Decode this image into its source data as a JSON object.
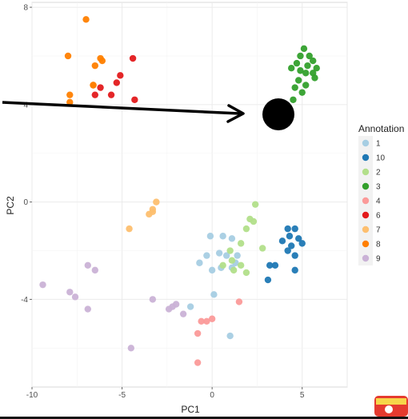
{
  "chart_data": {
    "type": "scatter",
    "title": "",
    "xlabel": "PC1",
    "ylabel": "PC2",
    "xlim": [
      -10,
      7.5
    ],
    "ylim": [
      -7.6,
      8.2
    ],
    "xticks": [
      -10,
      -5,
      0,
      5
    ],
    "yticks": [
      -4,
      0,
      4,
      8
    ],
    "grid": true,
    "legend": {
      "title": "Annotation",
      "position": "right"
    },
    "series": [
      {
        "name": "1",
        "color": "#A6CEE3",
        "points": [
          [
            -0.1,
            -1.4
          ],
          [
            0.6,
            -1.4
          ],
          [
            1.1,
            -1.5
          ],
          [
            -0.3,
            -2.2
          ],
          [
            0.4,
            -2.1
          ],
          [
            0.8,
            -2.2
          ],
          [
            1.4,
            -2.2
          ],
          [
            1.3,
            -2.5
          ],
          [
            -0.7,
            -2.5
          ],
          [
            0,
            -2.8
          ],
          [
            0.5,
            -2.7
          ],
          [
            1.1,
            -2.7
          ],
          [
            0.1,
            -3.8
          ],
          [
            -1.2,
            -4.3
          ],
          [
            1,
            -5.5
          ]
        ]
      },
      {
        "name": "10",
        "color": "#1F78B4",
        "points": [
          [
            4.2,
            -1.1
          ],
          [
            4.6,
            -1.1
          ],
          [
            4.3,
            -1.4
          ],
          [
            4.8,
            -1.5
          ],
          [
            3.9,
            -1.6
          ],
          [
            4.4,
            -1.8
          ],
          [
            5,
            -1.7
          ],
          [
            4.2,
            -2
          ],
          [
            4.6,
            -2.2
          ],
          [
            3.5,
            -2.6
          ],
          [
            3.2,
            -2.6
          ],
          [
            4.6,
            -2.8
          ],
          [
            3.1,
            -3.2
          ]
        ]
      },
      {
        "name": "2",
        "color": "#B2DF8A",
        "points": [
          [
            2.4,
            -0.1
          ],
          [
            2.1,
            -0.7
          ],
          [
            2.3,
            -0.8
          ],
          [
            1.9,
            -1.1
          ],
          [
            1.6,
            -1.7
          ],
          [
            1,
            -2
          ],
          [
            2.8,
            -1.9
          ],
          [
            1.1,
            -2.4
          ],
          [
            1.6,
            -2.6
          ],
          [
            1.2,
            -2.8
          ],
          [
            0.6,
            -2.6
          ],
          [
            1.9,
            -2.9
          ]
        ]
      },
      {
        "name": "3",
        "color": "#33A02C",
        "points": [
          [
            5.1,
            6.3
          ],
          [
            4.9,
            6
          ],
          [
            5.4,
            6
          ],
          [
            5.6,
            5.8
          ],
          [
            4.7,
            5.7
          ],
          [
            5.3,
            5.6
          ],
          [
            5.8,
            5.5
          ],
          [
            4.9,
            5.4
          ],
          [
            4.4,
            5.5
          ],
          [
            5.2,
            5.3
          ],
          [
            5.6,
            5.3
          ],
          [
            4.8,
            5
          ],
          [
            5.7,
            5.1
          ],
          [
            5.2,
            4.8
          ],
          [
            4.6,
            4.7
          ],
          [
            5,
            4.5
          ],
          [
            4.5,
            4.2
          ]
        ]
      },
      {
        "name": "4",
        "color": "#FB9A99",
        "points": [
          [
            1.5,
            -4.1
          ],
          [
            -0.6,
            -4.9
          ],
          [
            0,
            -4.8
          ],
          [
            -0.3,
            -4.9
          ],
          [
            -0.8,
            -5.4
          ],
          [
            -0.8,
            -6.6
          ]
        ]
      },
      {
        "name": "6",
        "color": "#E31A1C",
        "points": [
          [
            -4.4,
            5.9
          ],
          [
            -5.1,
            5.2
          ],
          [
            -5.3,
            4.9
          ],
          [
            -6.2,
            4.7
          ],
          [
            -6.5,
            4.4
          ],
          [
            -5.6,
            4.4
          ],
          [
            -4.3,
            4.2
          ]
        ]
      },
      {
        "name": "7",
        "color": "#FDBF6F",
        "points": [
          [
            -3.1,
            0
          ],
          [
            -3.3,
            -0.3
          ],
          [
            -3.5,
            -0.5
          ],
          [
            -3.3,
            -0.4
          ],
          [
            -4.6,
            -1.1
          ]
        ]
      },
      {
        "name": "8",
        "color": "#FF7F00",
        "points": [
          [
            -7,
            7.5
          ],
          [
            -6.5,
            5.6
          ],
          [
            -8,
            6
          ],
          [
            -6.1,
            5.8
          ],
          [
            -6.2,
            5.9
          ],
          [
            -6.6,
            4.8
          ],
          [
            -6.6,
            4.8
          ],
          [
            -7.9,
            4.4
          ],
          [
            -7.9,
            4.1
          ]
        ]
      },
      {
        "name": "9",
        "color": "#CAB2D6",
        "points": [
          [
            -9.4,
            -3.4
          ],
          [
            -6.9,
            -2.6
          ],
          [
            -6.5,
            -2.8
          ],
          [
            -7.9,
            -3.7
          ],
          [
            -7.6,
            -3.9
          ],
          [
            -6.9,
            -4.4
          ],
          [
            -3.3,
            -4
          ],
          [
            -2,
            -4.2
          ],
          [
            -2.2,
            -4.3
          ],
          [
            -2.4,
            -4.4
          ],
          [
            -1.6,
            -4.6
          ],
          [
            -4.5,
            -6
          ]
        ]
      }
    ]
  },
  "annotations": {
    "arrow_color": "#000000",
    "marker_color": "#000000"
  }
}
